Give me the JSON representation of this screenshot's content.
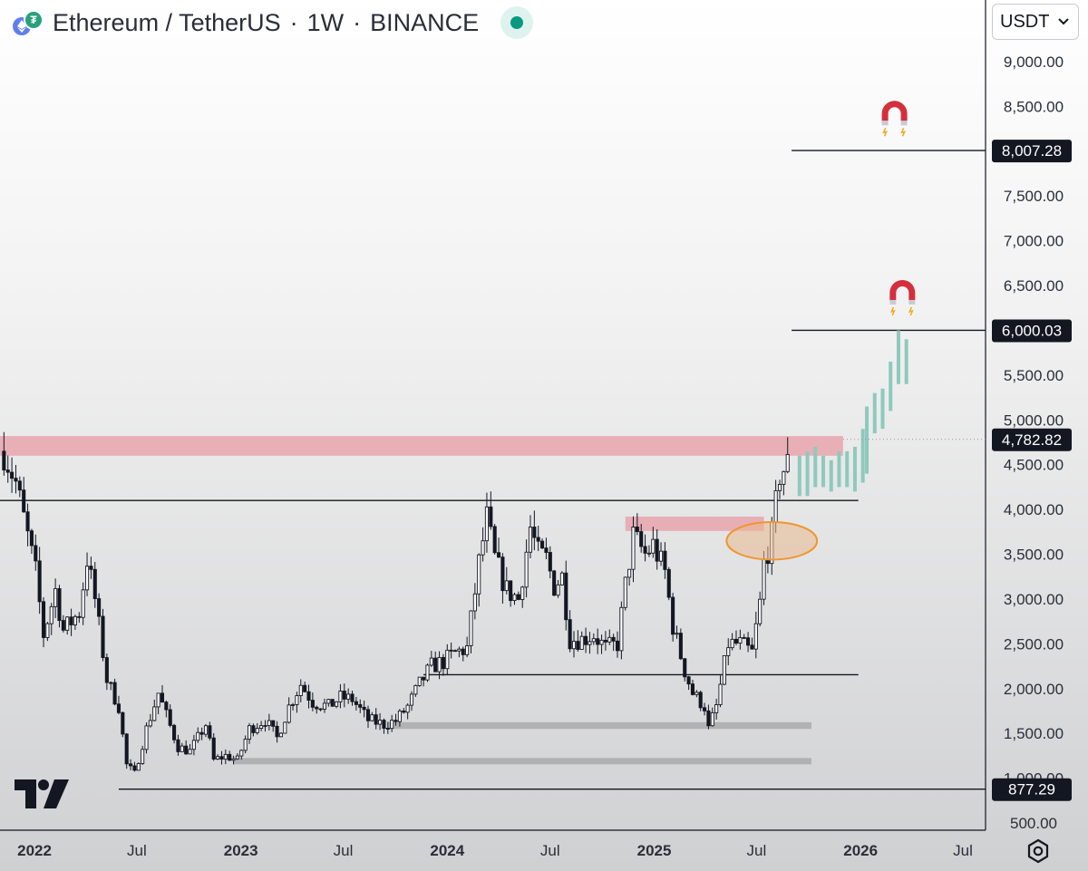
{
  "header": {
    "symbol": "Ethereum / TetherUS",
    "separator": "·",
    "interval": "1W",
    "exchange": "BINANCE",
    "base_icon": "ethereum-icon",
    "quote_icon": "tether-icon",
    "status_color": "#089981"
  },
  "currency_select": {
    "value": "USDT",
    "icon": "chevron-down-icon"
  },
  "price_axis": {
    "ticks": [
      "9,000.00",
      "8,500.00",
      "8,000.00",
      "7,500.00",
      "7,000.00",
      "6,500.00",
      "6,000.00",
      "5,500.00",
      "5,000.00",
      "4,500.00",
      "4,000.00",
      "3,500.00",
      "3,000.00",
      "2,500.00",
      "2,000.00",
      "1,500.00",
      "1,000.00",
      "500.00"
    ],
    "tick_values": [
      9000,
      8500,
      8000,
      7500,
      7000,
      6500,
      6000,
      5500,
      5000,
      4500,
      4000,
      3500,
      3000,
      2500,
      2000,
      1500,
      1000,
      500
    ],
    "price_labels": [
      {
        "text": "8,007.28",
        "value": 8007.28
      },
      {
        "text": "6,000.03",
        "value": 6000.03
      },
      {
        "text": "4,782.82",
        "value": 4782.82
      },
      {
        "text": "877.29",
        "value": 877.29
      }
    ]
  },
  "time_axis": {
    "labels": [
      {
        "text": "2022",
        "date": "2022-01-01",
        "bold": true
      },
      {
        "text": "Jul",
        "date": "2022-07-01",
        "bold": false
      },
      {
        "text": "2023",
        "date": "2023-01-01",
        "bold": true
      },
      {
        "text": "Jul",
        "date": "2023-07-01",
        "bold": false
      },
      {
        "text": "2024",
        "date": "2024-01-01",
        "bold": true
      },
      {
        "text": "Jul",
        "date": "2024-07-01",
        "bold": false
      },
      {
        "text": "2025",
        "date": "2025-01-01",
        "bold": true
      },
      {
        "text": "Jul",
        "date": "2025-07-01",
        "bold": false
      },
      {
        "text": "2026",
        "date": "2026-01-01",
        "bold": true
      },
      {
        "text": "Jul",
        "date": "2026-07-01",
        "bold": false
      }
    ]
  },
  "chart_data": {
    "type": "candlestick",
    "ylim": [
      500,
      9500
    ],
    "xlim": [
      "2021-11-01",
      "2026-08-10"
    ],
    "colors": {
      "candles": "#131722",
      "resistance_zone": "#e8a5ad",
      "support_zone": "#a9aaad",
      "projection": "#8ec9bd",
      "circle_fill": "#e9b98f",
      "circle_stroke": "#f0962e",
      "magnet_red": "#d32f3c"
    },
    "weekly_close_path": [
      [
        "2021-11-08",
        4650
      ],
      [
        "2021-11-29",
        4300
      ],
      [
        "2021-12-13",
        3900
      ],
      [
        "2022-01-03",
        3300
      ],
      [
        "2022-01-17",
        2600
      ],
      [
        "2022-02-07",
        3100
      ],
      [
        "2022-02-21",
        2650
      ],
      [
        "2022-03-21",
        2850
      ],
      [
        "2022-04-04",
        3450
      ],
      [
        "2022-04-18",
        3000
      ],
      [
        "2022-05-09",
        2100
      ],
      [
        "2022-05-30",
        1800
      ],
      [
        "2022-06-13",
        1150
      ],
      [
        "2022-06-27",
        1050
      ],
      [
        "2022-07-18",
        1550
      ],
      [
        "2022-08-08",
        1950
      ],
      [
        "2022-08-29",
        1580
      ],
      [
        "2022-09-12",
        1350
      ],
      [
        "2022-10-03",
        1300
      ],
      [
        "2022-10-31",
        1600
      ],
      [
        "2022-11-14",
        1200
      ],
      [
        "2022-12-05",
        1250
      ],
      [
        "2022-12-26",
        1200
      ],
      [
        "2023-01-16",
        1550
      ],
      [
        "2023-02-13",
        1650
      ],
      [
        "2023-03-06",
        1450
      ],
      [
        "2023-03-27",
        1800
      ],
      [
        "2023-04-17",
        2050
      ],
      [
        "2023-05-08",
        1850
      ],
      [
        "2023-06-05",
        1800
      ],
      [
        "2023-06-26",
        1900
      ],
      [
        "2023-07-17",
        1880
      ],
      [
        "2023-08-14",
        1650
      ],
      [
        "2023-09-11",
        1600
      ],
      [
        "2023-10-02",
        1640
      ],
      [
        "2023-10-23",
        1800
      ],
      [
        "2023-11-13",
        2050
      ],
      [
        "2023-12-04",
        2250
      ],
      [
        "2023-12-25",
        2300
      ],
      [
        "2024-01-15",
        2400
      ],
      [
        "2024-02-05",
        2450
      ],
      [
        "2024-02-26",
        3400
      ],
      [
        "2024-03-11",
        3900
      ],
      [
        "2024-03-25",
        3450
      ],
      [
        "2024-04-15",
        3100
      ],
      [
        "2024-05-06",
        3000
      ],
      [
        "2024-05-27",
        3800
      ],
      [
        "2024-06-10",
        3500
      ],
      [
        "2024-06-24",
        3450
      ],
      [
        "2024-07-08",
        3150
      ],
      [
        "2024-07-22",
        3250
      ],
      [
        "2024-08-05",
        2550
      ],
      [
        "2024-08-26",
        2550
      ],
      [
        "2024-09-16",
        2600
      ],
      [
        "2024-10-07",
        2450
      ],
      [
        "2024-10-28",
        2500
      ],
      [
        "2024-11-11",
        3150
      ],
      [
        "2024-11-25",
        3700
      ],
      [
        "2024-12-16",
        3500
      ],
      [
        "2024-12-30",
        3600
      ],
      [
        "2025-01-20",
        3300
      ],
      [
        "2025-02-03",
        2700
      ],
      [
        "2025-02-24",
        2200
      ],
      [
        "2025-03-10",
        1950
      ],
      [
        "2025-03-31",
        1800
      ],
      [
        "2025-04-07",
        1550
      ],
      [
        "2025-04-21",
        1800
      ],
      [
        "2025-05-12",
        2500
      ],
      [
        "2025-06-02",
        2500
      ],
      [
        "2025-06-23",
        2400
      ],
      [
        "2025-07-07",
        2950
      ],
      [
        "2025-07-14",
        3400
      ],
      [
        "2025-07-28",
        3700
      ],
      [
        "2025-08-11",
        4400
      ],
      [
        "2025-08-25",
        4500
      ]
    ],
    "horizontal_levels": [
      {
        "value": 4100,
        "from": "2021-11-01",
        "to": "2025-12-28",
        "color": "#131722"
      },
      {
        "value": 2155,
        "from": "2023-11-20",
        "to": "2025-12-28",
        "color": "#131722"
      },
      {
        "value": 877.29,
        "from": "2022-05-30",
        "to": "2026-08-10",
        "color": "#131722"
      },
      {
        "value": 6000.03,
        "from": "2025-09-01",
        "to": "2026-08-10",
        "color": "#131722"
      },
      {
        "value": 8007.28,
        "from": "2025-09-01",
        "to": "2026-08-10",
        "color": "#131722"
      }
    ],
    "zones": [
      {
        "kind": "resistance",
        "from": "2021-11-01",
        "to": "2025-12-01",
        "low": 4600,
        "high": 4820
      },
      {
        "kind": "resistance",
        "from": "2024-11-11",
        "to": "2025-07-14",
        "low": 3760,
        "high": 3920
      },
      {
        "kind": "support",
        "from": "2023-09-18",
        "to": "2025-10-06",
        "low": 1550,
        "high": 1625
      },
      {
        "kind": "support",
        "from": "2022-12-19",
        "to": "2025-10-06",
        "low": 1155,
        "high": 1225
      }
    ],
    "circle": {
      "center": [
        "2025-07-28",
        3650
      ],
      "rx_days": 80,
      "ry_value": 210
    },
    "projection_bars": [
      [
        "2025-09-15",
        4150,
        4600
      ],
      [
        "2025-09-29",
        4150,
        4650
      ],
      [
        "2025-10-13",
        4250,
        4700
      ],
      [
        "2025-10-27",
        4250,
        4600
      ],
      [
        "2025-11-10",
        4200,
        4550
      ],
      [
        "2025-11-24",
        4250,
        4650
      ],
      [
        "2025-12-08",
        4250,
        4650
      ],
      [
        "2025-12-22",
        4200,
        4700
      ],
      [
        "2026-01-05",
        4300,
        4900
      ],
      [
        "2026-01-12",
        4400,
        5150
      ],
      [
        "2026-01-26",
        4850,
        5300
      ],
      [
        "2026-02-09",
        4900,
        5350
      ],
      [
        "2026-02-23",
        5100,
        5650
      ],
      [
        "2026-03-09",
        5400,
        6000
      ],
      [
        "2026-03-23",
        5400,
        5900
      ]
    ],
    "magnets": [
      {
        "date": "2026-03-02",
        "value": 8400,
        "icon": "magnet-icon"
      },
      {
        "date": "2026-03-16",
        "value": 6400,
        "icon": "magnet-icon"
      }
    ]
  }
}
